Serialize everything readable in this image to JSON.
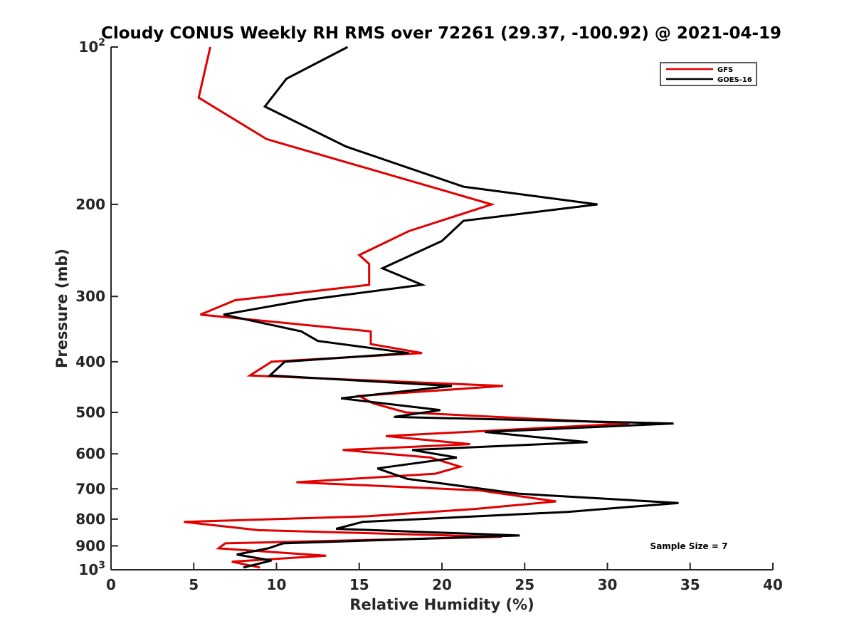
{
  "chart_data": {
    "type": "line",
    "title": "Cloudy CONUS Weekly RH RMS over 72261 (29.37, -100.92) @ 2021-04-19",
    "xlabel": "Relative Humidity (%)",
    "ylabel": "Pressure (mb)",
    "xlim": [
      0,
      40
    ],
    "ylim": [
      100,
      1000
    ],
    "yscale": "log",
    "y_reversed": true,
    "grid": false,
    "legend_position": "top-right",
    "x_ticks": [
      0,
      5,
      10,
      15,
      20,
      25,
      30,
      35,
      40
    ],
    "y_ticks": [
      {
        "value": 100,
        "base": "10",
        "exp": "2"
      },
      {
        "value": 200,
        "label": "200"
      },
      {
        "value": 300,
        "label": "300"
      },
      {
        "value": 400,
        "label": "400"
      },
      {
        "value": 500,
        "label": "500"
      },
      {
        "value": 600,
        "label": "600"
      },
      {
        "value": 700,
        "label": "700"
      },
      {
        "value": 800,
        "label": "800"
      },
      {
        "value": 900,
        "label": "900"
      },
      {
        "value": 1000,
        "base": "10",
        "exp": "3"
      }
    ],
    "annotation": "Sample Size = 7",
    "series": [
      {
        "name": "GFS",
        "color": "#e00000",
        "points": [
          [
            6.0,
            100
          ],
          [
            5.3,
            125
          ],
          [
            9.4,
            150
          ],
          [
            23.0,
            200
          ],
          [
            18.0,
            225
          ],
          [
            15.0,
            250
          ],
          [
            15.6,
            260
          ],
          [
            15.6,
            285
          ],
          [
            7.5,
            305
          ],
          [
            5.4,
            325
          ],
          [
            15.7,
            350
          ],
          [
            15.7,
            370
          ],
          [
            18.8,
            385
          ],
          [
            9.7,
            400
          ],
          [
            8.4,
            425
          ],
          [
            23.7,
            445
          ],
          [
            15.0,
            465
          ],
          [
            15.8,
            480
          ],
          [
            17.8,
            500
          ],
          [
            31.3,
            525
          ],
          [
            16.6,
            555
          ],
          [
            21.7,
            575
          ],
          [
            14.0,
            590
          ],
          [
            19.3,
            610
          ],
          [
            21.1,
            635
          ],
          [
            19.6,
            655
          ],
          [
            11.2,
            680
          ],
          [
            22.3,
            705
          ],
          [
            26.9,
            740
          ],
          [
            22.0,
            765
          ],
          [
            15.5,
            790
          ],
          [
            4.4,
            810
          ],
          [
            8.9,
            840
          ],
          [
            23.6,
            865
          ],
          [
            6.9,
            890
          ],
          [
            6.5,
            910
          ],
          [
            13.0,
            940
          ],
          [
            7.3,
            965
          ],
          [
            9.0,
            990
          ]
        ]
      },
      {
        "name": "GOES-16",
        "color": "#000000",
        "points": [
          [
            14.3,
            100
          ],
          [
            10.6,
            115
          ],
          [
            9.3,
            130
          ],
          [
            14.2,
            155
          ],
          [
            21.3,
            185
          ],
          [
            29.4,
            200
          ],
          [
            21.3,
            215
          ],
          [
            20.0,
            235
          ],
          [
            16.4,
            265
          ],
          [
            18.8,
            285
          ],
          [
            11.7,
            305
          ],
          [
            6.8,
            325
          ],
          [
            11.5,
            350
          ],
          [
            12.5,
            365
          ],
          [
            18.0,
            385
          ],
          [
            10.5,
            400
          ],
          [
            9.6,
            425
          ],
          [
            20.6,
            445
          ],
          [
            13.9,
            470
          ],
          [
            19.9,
            495
          ],
          [
            17.1,
            510
          ],
          [
            34.0,
            525
          ],
          [
            22.6,
            545
          ],
          [
            28.8,
            570
          ],
          [
            18.2,
            590
          ],
          [
            20.9,
            610
          ],
          [
            16.1,
            640
          ],
          [
            17.9,
            670
          ],
          [
            24.6,
            715
          ],
          [
            34.3,
            745
          ],
          [
            27.6,
            775
          ],
          [
            15.2,
            810
          ],
          [
            13.6,
            835
          ],
          [
            24.7,
            860
          ],
          [
            10.4,
            890
          ],
          [
            9.5,
            910
          ],
          [
            7.6,
            935
          ],
          [
            9.7,
            960
          ],
          [
            8.0,
            990
          ]
        ]
      }
    ]
  }
}
